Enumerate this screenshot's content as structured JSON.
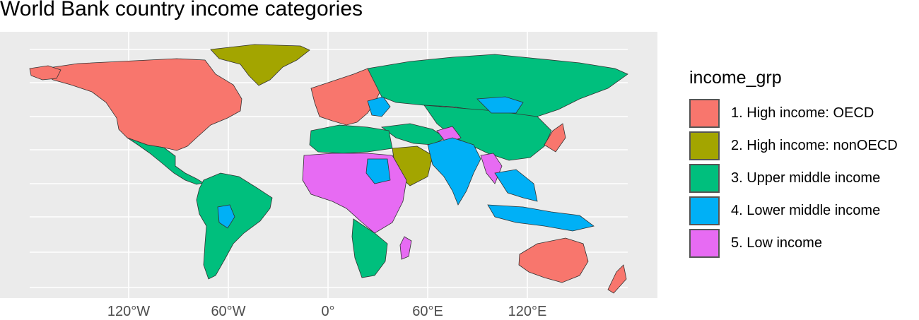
{
  "title": "World Bank country income categories",
  "axis": {
    "x_ticks": [
      "120°W",
      "60°W",
      "0°",
      "60°E",
      "120°E"
    ]
  },
  "legend": {
    "title": "income_grp",
    "items": [
      {
        "label": "1. High income: OECD",
        "color": "#F8766D"
      },
      {
        "label": "2. High income: nonOECD",
        "color": "#A3A500"
      },
      {
        "label": "3. Upper middle income",
        "color": "#00BF7D"
      },
      {
        "label": "4. Lower middle income",
        "color": "#00B0F6"
      },
      {
        "label": "5. Low income",
        "color": "#E76BF3"
      }
    ]
  },
  "chart_data": {
    "type": "map",
    "title": "World Bank country income categories",
    "fill_variable": "income_grp",
    "grid": true,
    "legend_position": "right",
    "x_ticks": [
      -120,
      -60,
      0,
      60,
      120
    ],
    "regions": [
      {
        "name": "North America (USA, Canada)",
        "group": "1. High income: OECD"
      },
      {
        "name": "Greenland",
        "group": "2. High income: nonOECD"
      },
      {
        "name": "Mexico & Central America",
        "group": "3. Upper middle income"
      },
      {
        "name": "South America",
        "group": "3. Upper middle income"
      },
      {
        "name": "Bolivia / Paraguay",
        "group": "4. Lower middle income"
      },
      {
        "name": "Western Europe",
        "group": "1. High income: OECD"
      },
      {
        "name": "Eastern Europe",
        "group": "4. Lower middle income"
      },
      {
        "name": "Russia",
        "group": "3. Upper middle income"
      },
      {
        "name": "Central Asia",
        "group": "3. Upper middle income"
      },
      {
        "name": "Mongolia",
        "group": "4. Lower middle income"
      },
      {
        "name": "China",
        "group": "3. Upper middle income"
      },
      {
        "name": "Japan / South Korea",
        "group": "1. High income: OECD"
      },
      {
        "name": "Saudi Arabia / Gulf",
        "group": "2. High income: nonOECD"
      },
      {
        "name": "North Africa",
        "group": "3. Upper middle income"
      },
      {
        "name": "Sahel & Central Africa",
        "group": "5. Low income"
      },
      {
        "name": "Nigeria / Ghana / Sudan",
        "group": "4. Lower middle income"
      },
      {
        "name": "Southern Africa",
        "group": "3. Upper middle income"
      },
      {
        "name": "Madagascar",
        "group": "5. Low income"
      },
      {
        "name": "Afghanistan",
        "group": "5. Low income"
      },
      {
        "name": "India / Pakistan",
        "group": "4. Lower middle income"
      },
      {
        "name": "Myanmar / Bangladesh",
        "group": "5. Low income"
      },
      {
        "name": "Southeast Asia",
        "group": "4. Lower middle income"
      },
      {
        "name": "Indonesia",
        "group": "4. Lower middle income"
      },
      {
        "name": "Australia",
        "group": "1. High income: OECD"
      },
      {
        "name": "New Zealand",
        "group": "1. High income: OECD"
      }
    ]
  }
}
